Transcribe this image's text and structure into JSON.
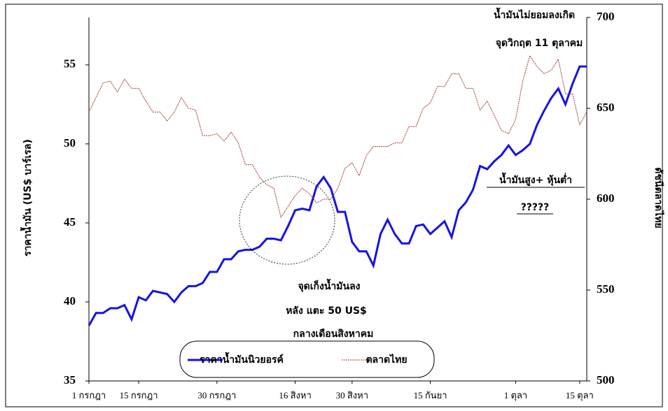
{
  "chart_data": {
    "type": "line",
    "categories": [
      "1 กรกฎา",
      null,
      null,
      null,
      null,
      null,
      null,
      "15 กรกฎา",
      null,
      null,
      null,
      null,
      null,
      null,
      null,
      null,
      null,
      null,
      "30 กรกฎา",
      null,
      null,
      null,
      null,
      null,
      null,
      null,
      null,
      null,
      null,
      "16 สิงหา",
      null,
      null,
      null,
      null,
      null,
      null,
      null,
      "30 สิงหา",
      null,
      null,
      null,
      null,
      null,
      null,
      null,
      null,
      null,
      null,
      "15 กันยา",
      null,
      null,
      null,
      null,
      null,
      null,
      null,
      null,
      null,
      null,
      null,
      "1 ตุลา",
      null,
      null,
      null,
      null,
      null,
      null,
      null,
      null,
      "15 ตุลา",
      null
    ],
    "series": [
      {
        "name": "ราคาน้ำมันนิวยอรค์",
        "color": "#1414e6",
        "axis": "y",
        "values": [
          38.5,
          39.3,
          39.3,
          39.6,
          39.6,
          39.8,
          38.9,
          40.3,
          40.1,
          40.7,
          40.6,
          40.5,
          40.0,
          40.6,
          41.0,
          41.0,
          41.2,
          41.9,
          41.9,
          42.7,
          42.7,
          43.2,
          43.3,
          43.3,
          43.5,
          44.0,
          44.0,
          43.9,
          44.8,
          45.8,
          45.9,
          45.8,
          47.3,
          47.9,
          47.2,
          45.7,
          45.7,
          43.8,
          43.2,
          43.2,
          42.3,
          44.3,
          45.2,
          44.3,
          43.7,
          43.7,
          44.8,
          44.9,
          44.3,
          44.7,
          45.1,
          44.1,
          45.8,
          46.3,
          47.1,
          48.6,
          48.4,
          48.9,
          49.3,
          49.9,
          49.3,
          49.6,
          50.0,
          51.2,
          52.1,
          52.9,
          53.5,
          52.5,
          53.8,
          54.9,
          54.9
        ]
      },
      {
        "name": "ตลาดไทย",
        "color": "#a0402c",
        "axis": "y2",
        "values": [
          648,
          656,
          664,
          665,
          659,
          666,
          661,
          661,
          654,
          648,
          648,
          643,
          648,
          656,
          650,
          649,
          635,
          635,
          636,
          632,
          637,
          631,
          619,
          619,
          612,
          608,
          606,
          590,
          596,
          602,
          606,
          603,
          598,
          600,
          600,
          606,
          617,
          620,
          613,
          624,
          629,
          629,
          629,
          631,
          631,
          640,
          640,
          650,
          653,
          662,
          662,
          669,
          669,
          661,
          661,
          649,
          654,
          646,
          638,
          636,
          644,
          665,
          679,
          673,
          669,
          671,
          677,
          658,
          658,
          641,
          648
        ]
      }
    ],
    "ylabel": "ราคาน้ำมัน (US$ บาร์เรล)",
    "y2label": "ดัชนีตลาดไทย",
    "ylim": [
      35,
      58
    ],
    "yticks": [
      35,
      40,
      45,
      50,
      55
    ],
    "y2lim": [
      500,
      700
    ],
    "y2ticks": [
      500,
      550,
      600,
      650,
      700
    ],
    "annotations": [
      "น้ำมันไม่ยอมลงเกิด",
      "จุดวิกฤต 11 ตุลาคม",
      "น้ำมันสูง+ หุ้นต่ำ",
      "?????",
      "จุดเก็งน้ำมันลง",
      "หลัง แตะ 50 US$",
      "กลางเดือนสิงหาคม"
    ],
    "legend": "bottom"
  }
}
